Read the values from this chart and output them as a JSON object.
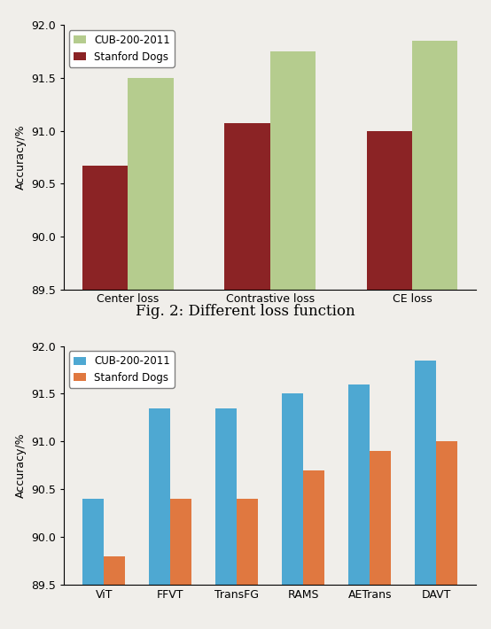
{
  "chart1": {
    "categories": [
      "Center loss",
      "Contrastive loss",
      "CE loss"
    ],
    "cub_values": [
      91.5,
      91.75,
      91.85
    ],
    "dogs_values": [
      90.67,
      91.07,
      91.0
    ],
    "cub_color": "#b5cc8e",
    "dogs_color": "#8b2325",
    "ylabel": "Accuracy/%",
    "ylim": [
      89.5,
      92.0
    ],
    "yticks": [
      89.5,
      90.0,
      90.5,
      91.0,
      91.5,
      92.0
    ],
    "legend_cub": "CUB-200-2011",
    "legend_dogs": "Stanford Dogs",
    "caption": "Fig. 2: Different loss function"
  },
  "chart2": {
    "categories": [
      "ViT",
      "FFVT",
      "TransFG",
      "RAMS",
      "AETrans",
      "DAVT"
    ],
    "cub_values": [
      90.4,
      91.35,
      91.35,
      91.5,
      91.6,
      91.85
    ],
    "dogs_values": [
      89.8,
      90.4,
      90.4,
      90.7,
      90.9,
      91.0
    ],
    "cub_color": "#4ea8d2",
    "dogs_color": "#e07840",
    "ylabel": "Accuracy/%",
    "ylim": [
      89.5,
      92.0
    ],
    "yticks": [
      89.5,
      90.0,
      90.5,
      91.0,
      91.5,
      92.0
    ],
    "legend_cub": "CUB-200-2011",
    "legend_dogs": "Stanford Dogs"
  },
  "fig_width": 5.54,
  "fig_height": 7.1,
  "bg_color": "#f0eeea"
}
